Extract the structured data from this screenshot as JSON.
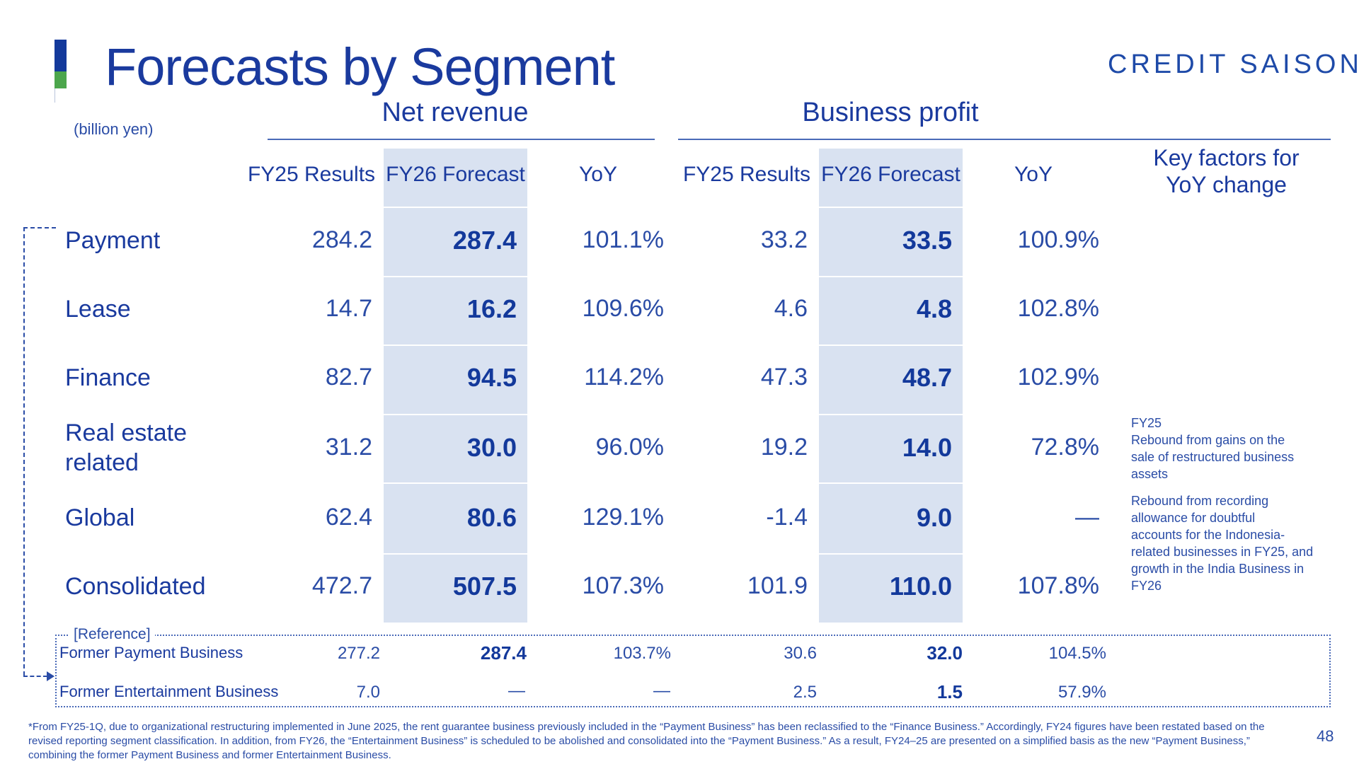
{
  "header": {
    "title": "Forecasts by Segment",
    "brand": "CREDIT SAISON",
    "unit": "(billion yen)"
  },
  "groups": {
    "net_revenue": "Net revenue",
    "business_profit": "Business profit"
  },
  "columns": {
    "fy25_results": "FY25 Results",
    "fy26_forecast": "FY26 Forecast",
    "yoy": "YoY",
    "key_factors_1": "Key factors for",
    "key_factors_2": "YoY change"
  },
  "rows": [
    {
      "label": "Payment",
      "nr_fy25": "284.2",
      "nr_fy26": "287.4",
      "nr_yoy": "101.1%",
      "bp_fy25": "33.2",
      "bp_fy26": "33.5",
      "bp_yoy": "100.9%"
    },
    {
      "label": "Lease",
      "nr_fy25": "14.7",
      "nr_fy26": "16.2",
      "nr_yoy": "109.6%",
      "bp_fy25": "4.6",
      "bp_fy26": "4.8",
      "bp_yoy": "102.8%"
    },
    {
      "label": "Finance",
      "nr_fy25": "82.7",
      "nr_fy26": "94.5",
      "nr_yoy": "114.2%",
      "bp_fy25": "47.3",
      "bp_fy26": "48.7",
      "bp_yoy": "102.9%"
    },
    {
      "label_1": "Real estate",
      "label_2": "related",
      "nr_fy25": "31.2",
      "nr_fy26": "30.0",
      "nr_yoy": "96.0%",
      "bp_fy25": "19.2",
      "bp_fy26": "14.0",
      "bp_yoy": "72.8%"
    },
    {
      "label": "Global",
      "nr_fy25": "62.4",
      "nr_fy26": "80.6",
      "nr_yoy": "129.1%",
      "bp_fy25": "-1.4",
      "bp_fy26": "9.0",
      "bp_yoy": "—"
    },
    {
      "label": "Consolidated",
      "nr_fy25": "472.7",
      "nr_fy26": "507.5",
      "nr_yoy": "107.3%",
      "bp_fy25": "101.9",
      "bp_fy26": "110.0",
      "bp_yoy": "107.8%"
    }
  ],
  "key_factors": {
    "real_estate": [
      "FY25",
      "Rebound from gains on the",
      "sale of restructured business",
      "assets"
    ],
    "global": [
      "Rebound from recording",
      "allowance for doubtful",
      "accounts for the Indonesia-",
      "related businesses in FY25, and",
      "growth in the India Business in",
      "FY26"
    ]
  },
  "reference": {
    "tag": "[Reference]",
    "rows": [
      {
        "label": "Former Payment Business",
        "nr_fy25": "277.2",
        "nr_fy26": "287.4",
        "nr_yoy": "103.7%",
        "bp_fy25": "30.6",
        "bp_fy26": "32.0",
        "bp_yoy": "104.5%"
      },
      {
        "label": "Former Entertainment Business",
        "nr_fy25": "7.0",
        "nr_fy26": "—",
        "nr_yoy": "—",
        "bp_fy25": "2.5",
        "bp_fy26": "1.5",
        "bp_yoy": "57.9%"
      }
    ]
  },
  "footnote": [
    "*From FY25-1Q, due to organizational restructuring implemented in June 2025, the rent guarantee business previously included in the “Payment Business” has been reclassified to the “Finance Business.” Accordingly, FY24 figures have been restated based on the",
    "revised reporting segment classification. In addition, from FY26, the “Entertainment Business” is scheduled to be abolished and consolidated into the “Payment Business.”  As a result, FY24–25 are presented on a simplified basis as the new “Payment Business,”",
    "combining the former Payment Business and former Entertainment Business."
  ],
  "page_number": "48"
}
